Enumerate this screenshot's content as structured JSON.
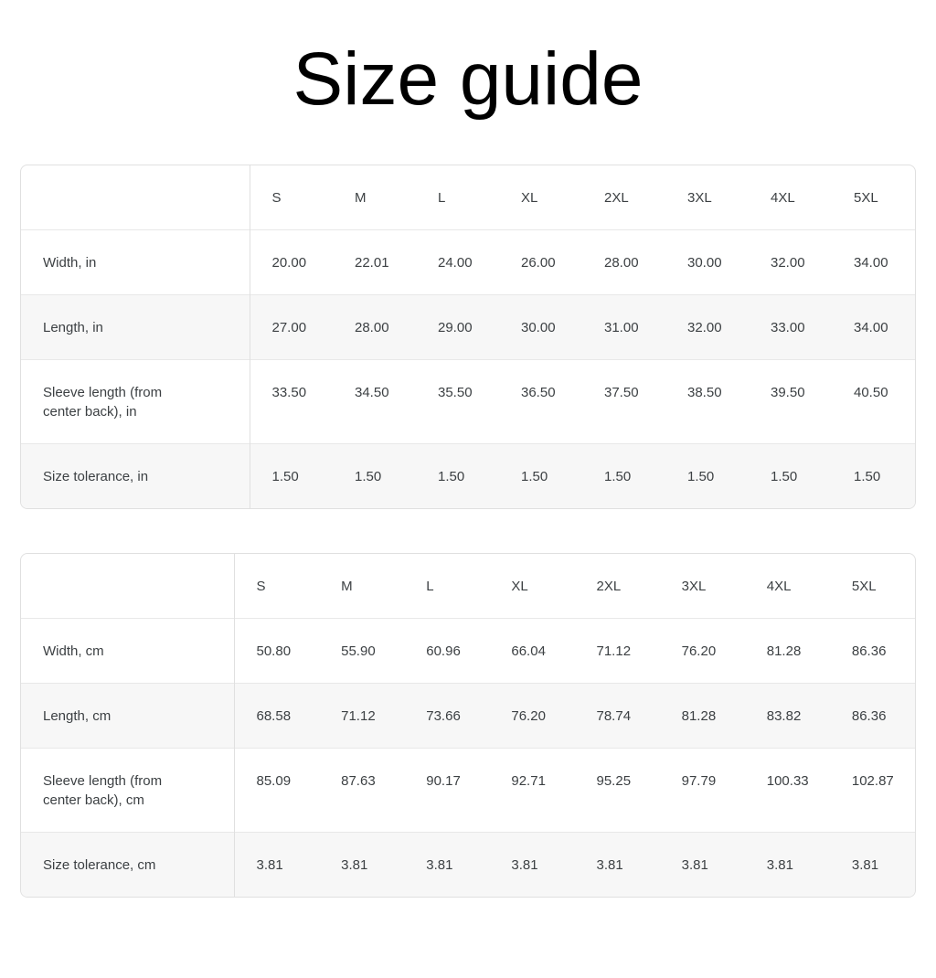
{
  "page": {
    "title": "Size guide"
  },
  "colors": {
    "background": "#ffffff",
    "title_text": "#000000",
    "table_text": "#3c4043",
    "table_border": "#e0e0e0",
    "row_divider": "#e8e8e8",
    "zebra_row": "#f7f7f7"
  },
  "tables": [
    {
      "columns": [
        "S",
        "M",
        "L",
        "XL",
        "2XL",
        "3XL",
        "4XL",
        "5XL"
      ],
      "rows": [
        {
          "label": "Width, in",
          "values": [
            "20.00",
            "22.01",
            "24.00",
            "26.00",
            "28.00",
            "30.00",
            "32.00",
            "34.00"
          ]
        },
        {
          "label": "Length, in",
          "values": [
            "27.00",
            "28.00",
            "29.00",
            "30.00",
            "31.00",
            "32.00",
            "33.00",
            "34.00"
          ]
        },
        {
          "label": "Sleeve length (from center back), in",
          "values": [
            "33.50",
            "34.50",
            "35.50",
            "36.50",
            "37.50",
            "38.50",
            "39.50",
            "40.50"
          ]
        },
        {
          "label": "Size tolerance, in",
          "values": [
            "1.50",
            "1.50",
            "1.50",
            "1.50",
            "1.50",
            "1.50",
            "1.50",
            "1.50"
          ]
        }
      ]
    },
    {
      "columns": [
        "S",
        "M",
        "L",
        "XL",
        "2XL",
        "3XL",
        "4XL",
        "5XL"
      ],
      "rows": [
        {
          "label": "Width, cm",
          "values": [
            "50.80",
            "55.90",
            "60.96",
            "66.04",
            "71.12",
            "76.20",
            "81.28",
            "86.36"
          ]
        },
        {
          "label": "Length, cm",
          "values": [
            "68.58",
            "71.12",
            "73.66",
            "76.20",
            "78.74",
            "81.28",
            "83.82",
            "86.36"
          ]
        },
        {
          "label": "Sleeve length (from center back), cm",
          "values": [
            "85.09",
            "87.63",
            "90.17",
            "92.71",
            "95.25",
            "97.79",
            "100.33",
            "102.87"
          ]
        },
        {
          "label": "Size tolerance, cm",
          "values": [
            "3.81",
            "3.81",
            "3.81",
            "3.81",
            "3.81",
            "3.81",
            "3.81",
            "3.81"
          ]
        }
      ]
    }
  ]
}
